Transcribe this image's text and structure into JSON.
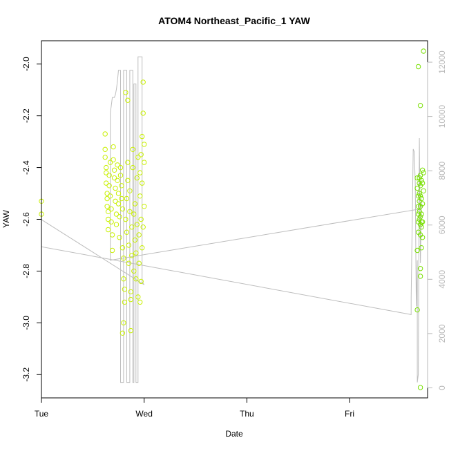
{
  "chart_data": {
    "type": "scatter",
    "title": "ATOM4 Northeast_Pacific_1 YAW",
    "xlabel": "Date",
    "ylabel": "YAW",
    "x_ticks": [
      "Tue",
      "Wed",
      "Thu",
      "Fri"
    ],
    "x_tick_positions": [
      0,
      1,
      2,
      3
    ],
    "xlim": [
      0,
      3.76
    ],
    "ylim": [
      -3.29,
      -1.91
    ],
    "y_ticks": [
      -3.2,
      -3.0,
      -2.8,
      -2.6,
      -2.4,
      -2.2,
      -2.0
    ],
    "y_tick_labels": [
      "-3.2",
      "-3.0",
      "-2.8",
      "-2.6",
      "-2.4",
      "-2.2",
      "-2.0"
    ],
    "y2_ticks": [
      0,
      2000,
      4000,
      6000,
      8000,
      10000,
      12000
    ],
    "y2_tick_labels": [
      "0",
      "2000",
      "4000",
      "6000",
      "8000",
      "10000",
      "12000"
    ],
    "y2lim": [
      -370,
      12790
    ],
    "colors": {
      "points_early": "#c8f000",
      "points_late": "#78e000",
      "secondary_line": "#bdbdbd",
      "axis": "#000000",
      "right_axis": "#b8b8b8"
    },
    "series": [
      {
        "points": [
          [
            0.0,
            -2.53
          ],
          [
            0.0,
            -2.58
          ],
          [
            0.62,
            -2.27
          ],
          [
            0.62,
            -2.33
          ],
          [
            0.62,
            -2.36
          ],
          [
            0.63,
            -2.4
          ],
          [
            0.63,
            -2.42
          ],
          [
            0.63,
            -2.46
          ],
          [
            0.64,
            -2.5
          ],
          [
            0.64,
            -2.52
          ],
          [
            0.64,
            -2.55
          ],
          [
            0.65,
            -2.57
          ],
          [
            0.65,
            -2.6
          ],
          [
            0.65,
            -2.64
          ],
          [
            0.66,
            -2.47
          ],
          [
            0.66,
            -2.43
          ],
          [
            0.67,
            -2.38
          ],
          [
            0.67,
            -2.51
          ],
          [
            0.68,
            -2.56
          ],
          [
            0.68,
            -2.61
          ],
          [
            0.69,
            -2.66
          ],
          [
            0.69,
            -2.72
          ],
          [
            0.7,
            -2.32
          ],
          [
            0.7,
            -2.37
          ],
          [
            0.71,
            -2.41
          ],
          [
            0.71,
            -2.44
          ],
          [
            0.72,
            -2.48
          ],
          [
            0.72,
            -2.53
          ],
          [
            0.73,
            -2.58
          ],
          [
            0.73,
            -2.62
          ],
          [
            0.74,
            -2.39
          ],
          [
            0.74,
            -2.45
          ],
          [
            0.75,
            -2.5
          ],
          [
            0.75,
            -2.54
          ],
          [
            0.76,
            -2.59
          ],
          [
            0.76,
            -2.67
          ],
          [
            0.77,
            -2.4
          ],
          [
            0.77,
            -2.43
          ],
          [
            0.78,
            -2.47
          ],
          [
            0.78,
            -2.52
          ],
          [
            0.79,
            -2.56
          ],
          [
            0.79,
            -2.71
          ],
          [
            0.8,
            -2.75
          ],
          [
            0.8,
            -2.83
          ],
          [
            0.81,
            -2.87
          ],
          [
            0.81,
            -2.92
          ],
          [
            0.82,
            -2.11
          ],
          [
            0.82,
            -2.6
          ],
          [
            0.83,
            -2.52
          ],
          [
            0.83,
            -2.65
          ],
          [
            0.84,
            -2.45
          ],
          [
            0.84,
            -2.38
          ],
          [
            0.85,
            -2.7
          ],
          [
            0.85,
            -2.77
          ],
          [
            0.86,
            -2.57
          ],
          [
            0.86,
            -2.49
          ],
          [
            0.87,
            -2.88
          ],
          [
            0.87,
            -2.91
          ],
          [
            0.88,
            -2.74
          ],
          [
            0.88,
            -2.63
          ],
          [
            0.89,
            -2.4
          ],
          [
            0.89,
            -2.33
          ],
          [
            0.9,
            -2.8
          ],
          [
            0.9,
            -2.58
          ],
          [
            0.91,
            -2.68
          ],
          [
            0.91,
            -2.54
          ],
          [
            0.92,
            -2.83
          ],
          [
            0.92,
            -2.73
          ],
          [
            0.93,
            -2.62
          ],
          [
            0.93,
            -2.44
          ],
          [
            0.94,
            -2.36
          ],
          [
            0.94,
            -2.9
          ],
          [
            0.95,
            -2.77
          ],
          [
            0.95,
            -2.66
          ],
          [
            0.96,
            -2.51
          ],
          [
            0.96,
            -2.42
          ],
          [
            0.97,
            -2.35
          ],
          [
            0.97,
            -2.6
          ],
          [
            0.98,
            -2.71
          ],
          [
            0.98,
            -2.28
          ],
          [
            0.99,
            -2.19
          ],
          [
            0.99,
            -2.07
          ],
          [
            1.0,
            -2.31
          ],
          [
            1.0,
            -2.38
          ],
          [
            0.8,
            -3.0
          ],
          [
            0.79,
            -3.04
          ],
          [
            0.87,
            -3.03
          ],
          [
            0.84,
            -2.14
          ],
          [
            0.96,
            -2.92
          ],
          [
            0.97,
            -2.84
          ],
          [
            0.99,
            -2.63
          ],
          [
            0.98,
            -2.46
          ],
          [
            1.0,
            -2.55
          ]
        ]
      },
      {
        "points": [
          [
            3.67,
            -2.01
          ],
          [
            3.69,
            -2.16
          ],
          [
            3.72,
            -1.95
          ],
          [
            3.66,
            -2.95
          ],
          [
            3.69,
            -3.25
          ],
          [
            3.66,
            -2.44
          ],
          [
            3.66,
            -2.48
          ],
          [
            3.67,
            -2.51
          ],
          [
            3.67,
            -2.55
          ],
          [
            3.67,
            -2.58
          ],
          [
            3.67,
            -2.61
          ],
          [
            3.68,
            -2.44
          ],
          [
            3.68,
            -2.46
          ],
          [
            3.68,
            -2.5
          ],
          [
            3.68,
            -2.53
          ],
          [
            3.68,
            -2.57
          ],
          [
            3.68,
            -2.6
          ],
          [
            3.69,
            -2.43
          ],
          [
            3.69,
            -2.47
          ],
          [
            3.69,
            -2.51
          ],
          [
            3.69,
            -2.55
          ],
          [
            3.69,
            -2.59
          ],
          [
            3.69,
            -2.62
          ],
          [
            3.69,
            -2.66
          ],
          [
            3.7,
            -2.45
          ],
          [
            3.7,
            -2.52
          ],
          [
            3.7,
            -2.58
          ],
          [
            3.7,
            -2.61
          ],
          [
            3.7,
            -2.63
          ],
          [
            3.71,
            -2.41
          ],
          [
            3.71,
            -2.46
          ],
          [
            3.71,
            -2.54
          ],
          [
            3.71,
            -2.61
          ],
          [
            3.72,
            -2.42
          ],
          [
            3.72,
            -2.49
          ],
          [
            3.66,
            -2.72
          ],
          [
            3.67,
            -2.65
          ],
          [
            3.69,
            -2.79
          ],
          [
            3.69,
            -2.82
          ],
          [
            3.7,
            -2.71
          ],
          [
            3.71,
            -2.67
          ]
        ]
      }
    ],
    "secondary_line": [
      [
        0.0,
        6200
      ],
      [
        0.0,
        5200
      ],
      [
        3.6,
        2700
      ],
      [
        3.6,
        3300
      ],
      [
        3.62,
        8800
      ],
      [
        3.63,
        8700
      ],
      [
        3.64,
        7500
      ],
      [
        3.65,
        3000
      ],
      [
        3.66,
        4700
      ],
      [
        3.66,
        200
      ],
      [
        3.67,
        500
      ],
      [
        3.68,
        9200
      ],
      [
        3.69,
        4600
      ],
      [
        3.7,
        6900
      ],
      [
        3.7,
        6600
      ],
      [
        0.67,
        4700
      ],
      [
        0.67,
        10100
      ],
      [
        0.69,
        10700
      ],
      [
        0.71,
        10700
      ],
      [
        0.72,
        10800
      ],
      [
        0.73,
        11000
      ],
      [
        0.74,
        11300
      ],
      [
        0.75,
        11700
      ],
      [
        0.77,
        11700
      ],
      [
        0.77,
        200
      ],
      [
        0.8,
        200
      ],
      [
        0.8,
        11700
      ],
      [
        0.83,
        11700
      ],
      [
        0.83,
        200
      ],
      [
        0.86,
        200
      ],
      [
        0.86,
        11700
      ],
      [
        0.89,
        11700
      ],
      [
        0.89,
        200
      ],
      [
        0.9,
        200
      ],
      [
        0.9,
        11200
      ],
      [
        0.92,
        11200
      ],
      [
        0.92,
        200
      ],
      [
        0.94,
        200
      ],
      [
        0.94,
        12200
      ],
      [
        0.98,
        12200
      ],
      [
        0.98,
        3900
      ],
      [
        1.0,
        3800
      ],
      [
        0.0,
        6200
      ]
    ]
  }
}
